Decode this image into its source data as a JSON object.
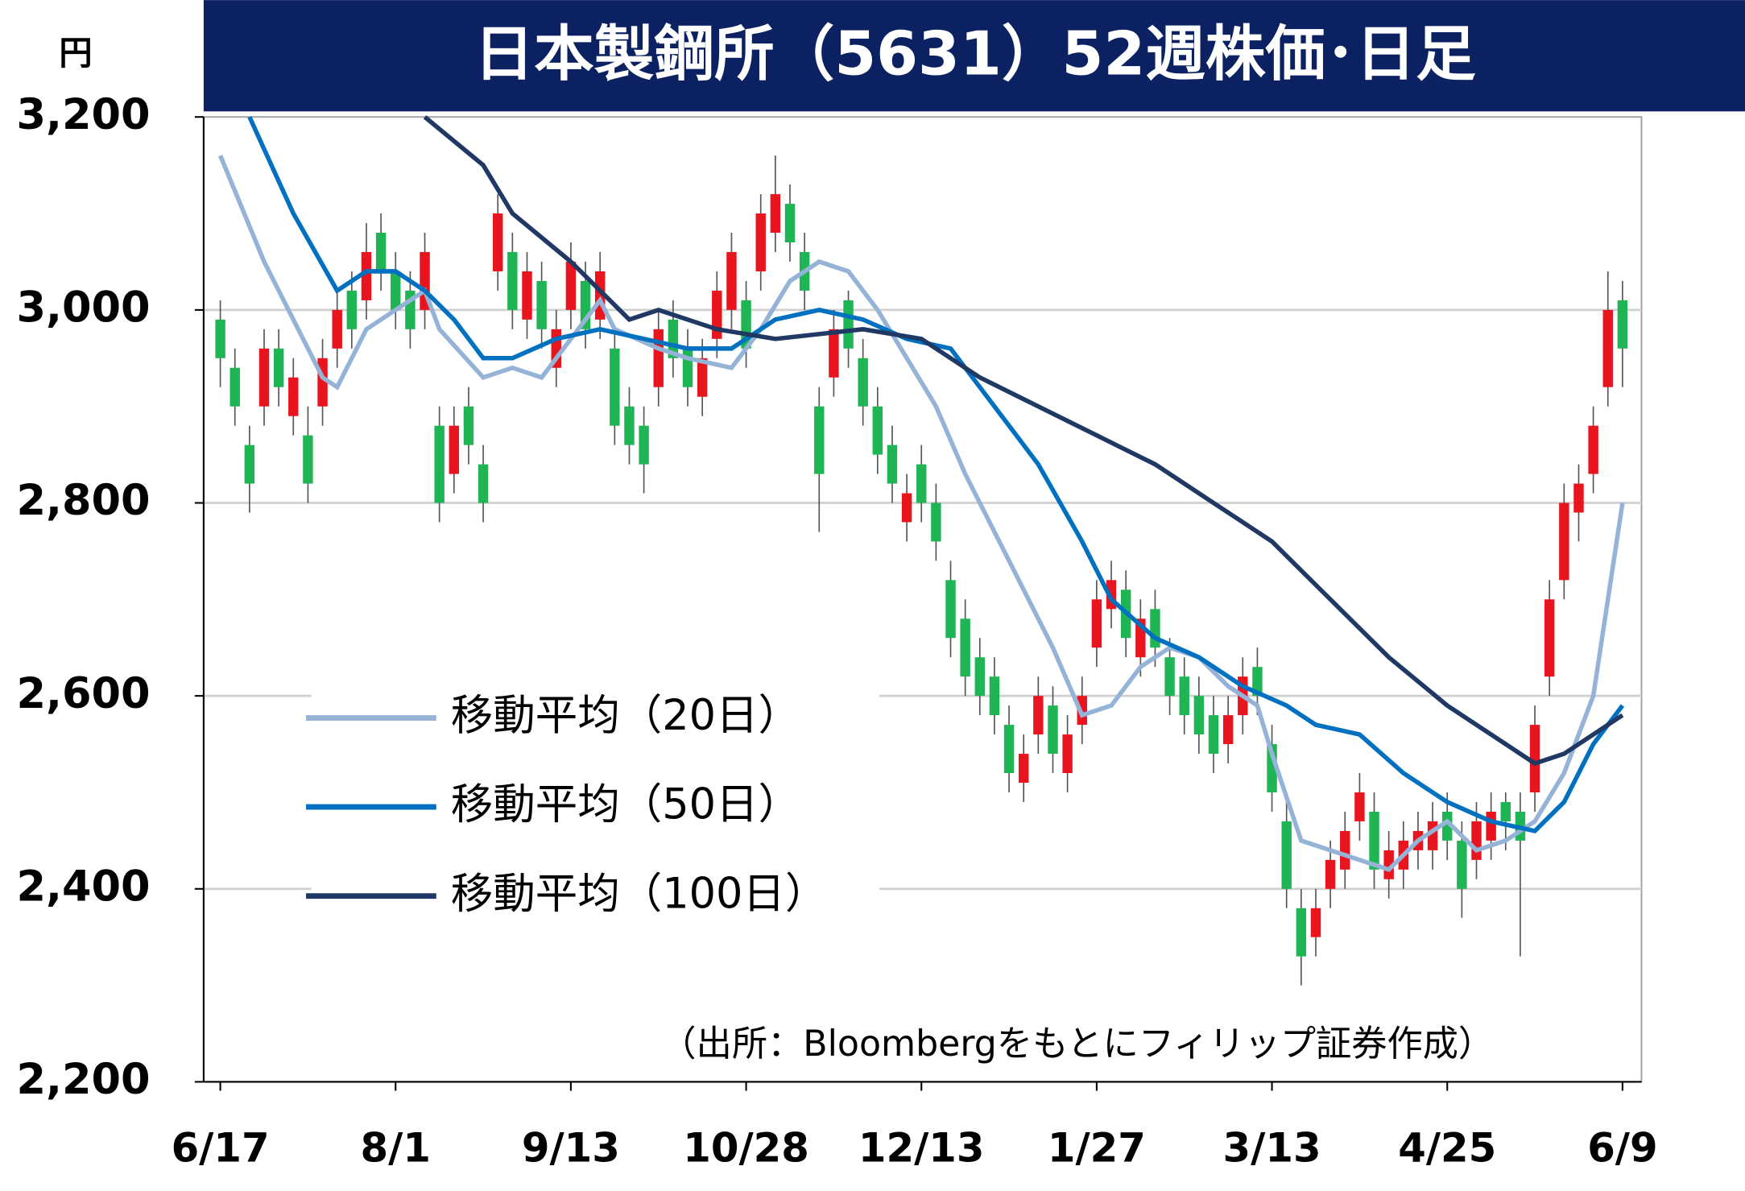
{
  "chart_data": {
    "type": "candlestick",
    "title": "日本製鋼所（5631）52週株価･日足",
    "y_label": "円",
    "note": "（出所：Bloombergをもとにフィリップ証券作成）",
    "up_color": "#e8141e",
    "down_color": "#1fb454",
    "grid": true,
    "xlim": [
      -1.14,
      97.3
    ],
    "xticks": [
      {
        "value": 0,
        "label": "6/17"
      },
      {
        "value": 12,
        "label": "8/1"
      },
      {
        "value": 24,
        "label": "9/13"
      },
      {
        "value": 36,
        "label": "10/28"
      },
      {
        "value": 48,
        "label": "12/13"
      },
      {
        "value": 60,
        "label": "1/27"
      },
      {
        "value": 72,
        "label": "3/13"
      },
      {
        "value": 84,
        "label": "4/25"
      },
      {
        "value": 96,
        "label": "6/9"
      }
    ],
    "ylim": [
      2200,
      3200
    ],
    "yticks": [
      {
        "value": 2200,
        "label": "2,200"
      },
      {
        "value": 2400,
        "label": "2,400"
      },
      {
        "value": 2600,
        "label": "2,600"
      },
      {
        "value": 2800,
        "label": "2,800"
      },
      {
        "value": 3000,
        "label": "3,000"
      },
      {
        "value": 3200,
        "label": "3,200"
      }
    ],
    "open": [
      2990,
      2940,
      2860,
      2900,
      2960,
      2890,
      2870,
      2900,
      2960,
      3020,
      3010,
      3080,
      3040,
      3020,
      3000,
      2880,
      2830,
      2900,
      2840,
      3040,
      3060,
      2990,
      3030,
      2940,
      3000,
      3030,
      2990,
      2960,
      2900,
      2880,
      2920,
      2990,
      2960,
      2910,
      2970,
      3000,
      3010,
      3040,
      3080,
      3110,
      3060,
      2900,
      2930,
      3010,
      2950,
      2900,
      2860,
      2780,
      2840,
      2800,
      2720,
      2680,
      2640,
      2620,
      2570,
      2510,
      2560,
      2590,
      2520,
      2570,
      2650,
      2690,
      2710,
      2640,
      2690,
      2640,
      2620,
      2600,
      2580,
      2550,
      2580,
      2630,
      2550,
      2470,
      2380,
      2350,
      2400,
      2420,
      2470,
      2480,
      2410,
      2420,
      2440,
      2440,
      2480,
      2450,
      2430,
      2450,
      2490,
      2480,
      2500,
      2620,
      2720,
      2790,
      2830,
      2920,
      3010
    ],
    "high": [
      3010,
      2960,
      2880,
      2980,
      2980,
      2950,
      2900,
      2970,
      3020,
      3040,
      3090,
      3100,
      3060,
      3040,
      3080,
      2900,
      2900,
      2920,
      2860,
      3120,
      3080,
      3060,
      3050,
      3000,
      3070,
      3050,
      3060,
      2980,
      2920,
      2900,
      3000,
      3010,
      2980,
      2970,
      3040,
      3080,
      3030,
      3120,
      3160,
      3130,
      3080,
      2920,
      3000,
      3020,
      2970,
      2920,
      2880,
      2830,
      2860,
      2820,
      2740,
      2700,
      2660,
      2640,
      2590,
      2560,
      2620,
      2610,
      2580,
      2620,
      2720,
      2740,
      2730,
      2700,
      2710,
      2660,
      2640,
      2620,
      2600,
      2600,
      2640,
      2650,
      2570,
      2490,
      2400,
      2400,
      2450,
      2480,
      2520,
      2500,
      2460,
      2470,
      2480,
      2490,
      2500,
      2470,
      2490,
      2500,
      2500,
      2500,
      2590,
      2720,
      2820,
      2840,
      2900,
      3040,
      3030
    ],
    "low": [
      2920,
      2880,
      2790,
      2880,
      2900,
      2870,
      2800,
      2880,
      2940,
      2960,
      2990,
      3020,
      2980,
      2960,
      2980,
      2780,
      2810,
      2840,
      2780,
      3020,
      2980,
      2970,
      2960,
      2920,
      2980,
      2960,
      2970,
      2860,
      2840,
      2810,
      2900,
      2930,
      2900,
      2890,
      2950,
      2980,
      2940,
      3020,
      3060,
      3050,
      3000,
      2770,
      2910,
      2940,
      2880,
      2830,
      2800,
      2760,
      2780,
      2740,
      2640,
      2600,
      2580,
      2560,
      2500,
      2490,
      2540,
      2520,
      2500,
      2550,
      2630,
      2670,
      2640,
      2620,
      2630,
      2580,
      2560,
      2540,
      2520,
      2530,
      2560,
      2580,
      2480,
      2380,
      2300,
      2330,
      2380,
      2400,
      2450,
      2400,
      2390,
      2400,
      2420,
      2420,
      2430,
      2370,
      2410,
      2430,
      2440,
      2330,
      2480,
      2600,
      2700,
      2760,
      2810,
      2900,
      2920
    ],
    "close": [
      2950,
      2900,
      2820,
      2960,
      2920,
      2930,
      2820,
      2950,
      3000,
      2980,
      3060,
      3040,
      3000,
      2980,
      3060,
      2800,
      2880,
      2860,
      2800,
      3100,
      3000,
      3040,
      2980,
      2980,
      3050,
      2980,
      3040,
      2880,
      2860,
      2840,
      2980,
      2950,
      2920,
      2950,
      3020,
      3060,
      2960,
      3100,
      3120,
      3070,
      3020,
      2830,
      2980,
      2960,
      2900,
      2850,
      2820,
      2810,
      2800,
      2760,
      2660,
      2620,
      2600,
      2580,
      2520,
      2540,
      2600,
      2540,
      2560,
      2600,
      2700,
      2720,
      2660,
      2680,
      2650,
      2600,
      2580,
      2560,
      2540,
      2580,
      2620,
      2600,
      2500,
      2400,
      2330,
      2380,
      2430,
      2460,
      2500,
      2420,
      2440,
      2450,
      2460,
      2470,
      2450,
      2400,
      2470,
      2480,
      2470,
      2450,
      2570,
      2700,
      2800,
      2820,
      2880,
      3000,
      2960
    ],
    "series": [
      {
        "name": "移動平均（20日）",
        "color": "#95b3d7",
        "x": [
          0,
          3,
          7,
          8,
          10,
          12,
          14,
          15,
          18,
          20,
          22,
          24,
          26,
          27,
          30,
          32,
          35,
          37,
          39,
          41,
          43,
          45,
          47,
          49,
          51,
          54,
          57,
          59,
          61,
          63,
          65,
          67,
          69,
          71,
          72,
          74,
          76,
          80,
          82,
          84,
          86,
          88,
          90,
          92,
          94,
          96
        ],
        "values": [
          3160,
          3050,
          2930,
          2920,
          2980,
          3000,
          3020,
          2980,
          2930,
          2940,
          2930,
          2970,
          3010,
          2980,
          2960,
          2950,
          2940,
          2980,
          3030,
          3050,
          3040,
          3000,
          2950,
          2900,
          2830,
          2740,
          2650,
          2580,
          2590,
          2630,
          2650,
          2640,
          2610,
          2590,
          2540,
          2450,
          2440,
          2420,
          2450,
          2470,
          2440,
          2450,
          2470,
          2520,
          2600,
          2800
        ]
      },
      {
        "name": "移動平均（50日）",
        "color": "#0070c0",
        "x": [
          2,
          5,
          8,
          10,
          12,
          14,
          16,
          18,
          20,
          23,
          26,
          29,
          32,
          35,
          38,
          41,
          44,
          47,
          50,
          53,
          56,
          59,
          61,
          64,
          67,
          70,
          73,
          75,
          78,
          81,
          84,
          87,
          90,
          92,
          94,
          96
        ],
        "values": [
          3200,
          3100,
          3020,
          3040,
          3040,
          3020,
          2990,
          2950,
          2950,
          2970,
          2980,
          2970,
          2960,
          2960,
          2990,
          3000,
          2990,
          2970,
          2960,
          2900,
          2840,
          2760,
          2700,
          2660,
          2640,
          2610,
          2590,
          2570,
          2560,
          2520,
          2490,
          2470,
          2460,
          2490,
          2550,
          2590
        ]
      },
      {
        "name": "移動平均（100日）",
        "color": "#1f3864",
        "x": [
          14,
          18,
          20,
          24,
          28,
          30,
          34,
          38,
          44,
          48,
          52,
          56,
          60,
          64,
          68,
          72,
          76,
          80,
          84,
          88,
          90,
          92,
          96
        ],
        "values": [
          3200,
          3150,
          3100,
          3050,
          2990,
          3000,
          2980,
          2970,
          2980,
          2970,
          2930,
          2900,
          2870,
          2840,
          2800,
          2760,
          2700,
          2640,
          2590,
          2550,
          2530,
          2540,
          2580
        ]
      }
    ]
  }
}
